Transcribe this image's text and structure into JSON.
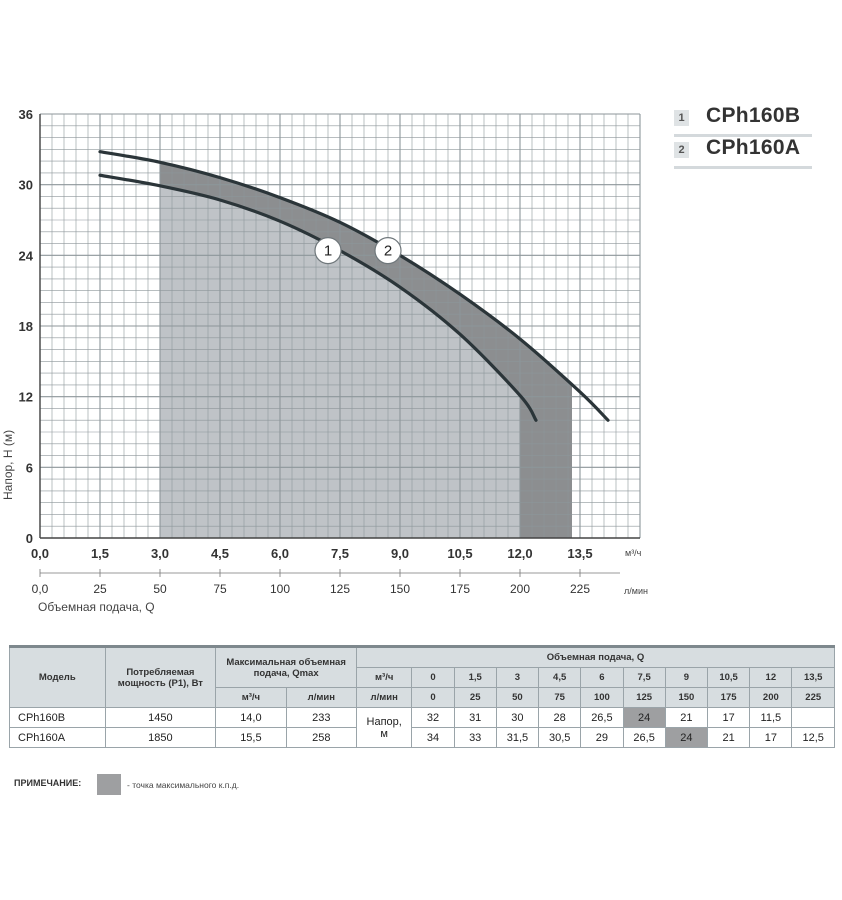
{
  "chart_data": {
    "type": "line",
    "ylabel": "Напор, H (м)",
    "xlabel": "Объемная подача, Q",
    "x_unit_m3h": "м³/ч",
    "x_unit_lmin": "л/мин",
    "y_ticks": [
      "0",
      "6",
      "12",
      "18",
      "24",
      "30",
      "36"
    ],
    "x_ticks_m3h": [
      "0,0",
      "1,5",
      "3,0",
      "4,5",
      "6,0",
      "7,5",
      "9,0",
      "10,5",
      "12,0",
      "13,5"
    ],
    "x_ticks_lmin": [
      "0,0",
      "25",
      "50",
      "75",
      "100",
      "125",
      "150",
      "175",
      "200",
      "225"
    ],
    "ylim": [
      0,
      36
    ],
    "xlim_m3h": [
      0,
      15
    ],
    "grid": true,
    "legend_position": "top-right",
    "series": [
      {
        "name": "CPh160B",
        "label": "1",
        "x": [
          1.5,
          3,
          4.5,
          6,
          7.5,
          9,
          10.5,
          12,
          12.4
        ],
        "y": [
          30.8,
          29.9,
          28.7,
          26.9,
          24.4,
          21.3,
          17.3,
          12.1,
          10.0
        ]
      },
      {
        "name": "CPh160A",
        "label": "2",
        "x": [
          1.5,
          3,
          4.5,
          6,
          7.5,
          9,
          10.5,
          12,
          13.5,
          14.2
        ],
        "y": [
          32.8,
          31.9,
          30.6,
          28.9,
          26.8,
          24.0,
          20.7,
          16.9,
          12.4,
          10.0
        ]
      }
    ],
    "shaded_regions": [
      {
        "series": "CPh160B",
        "x_from": 3.0,
        "x_to": 12.4
      },
      {
        "series": "CPh160A",
        "x_from": 12.0,
        "x_to": 13.3
      }
    ],
    "marker_points": [
      {
        "label": "1",
        "x": 7.2,
        "y": 24.4
      },
      {
        "label": "2",
        "x": 8.7,
        "y": 24.4
      }
    ],
    "colors": {
      "curve": "#2b3539",
      "region_light": "#bfc3c7",
      "region_dark": "#8c8e90",
      "grid": "#8d969a"
    }
  },
  "legend": [
    {
      "num": "1",
      "name": "CPh160B"
    },
    {
      "num": "2",
      "name": "CPh160A"
    }
  ],
  "table": {
    "h_model": "Модель",
    "h_power": "Потребляемая мощность (P1), Вт",
    "h_qmax": "Максимальная объемная подача, Qmax",
    "h_flow": "Объемная подача, Q",
    "unit_m3h": "м³/ч",
    "unit_lmin": "л/мин",
    "head_label_1": "Напор,",
    "head_label_2": "м",
    "flow_m3h": [
      "0",
      "1,5",
      "3",
      "4,5",
      "6",
      "7,5",
      "9",
      "10,5",
      "12",
      "13,5"
    ],
    "flow_lmin": [
      "0",
      "25",
      "50",
      "75",
      "100",
      "125",
      "150",
      "175",
      "200",
      "225"
    ],
    "rows": [
      {
        "model": "CPh160B",
        "power": "1450",
        "qmax_m3h": "14,0",
        "qmax_lmin": "233",
        "heads": [
          "32",
          "31",
          "30",
          "28",
          "26,5",
          "24",
          "21",
          "17",
          "11,5",
          ""
        ],
        "highlight": 5
      },
      {
        "model": "CPh160A",
        "power": "1850",
        "qmax_m3h": "15,5",
        "qmax_lmin": "258",
        "heads": [
          "34",
          "33",
          "31,5",
          "30,5",
          "29",
          "26,5",
          "24",
          "21",
          "17",
          "12,5"
        ],
        "highlight": 6
      }
    ]
  },
  "note": {
    "label": "ПРИМЕЧАНИЕ:",
    "text": "- точка максимального к.п.д."
  }
}
